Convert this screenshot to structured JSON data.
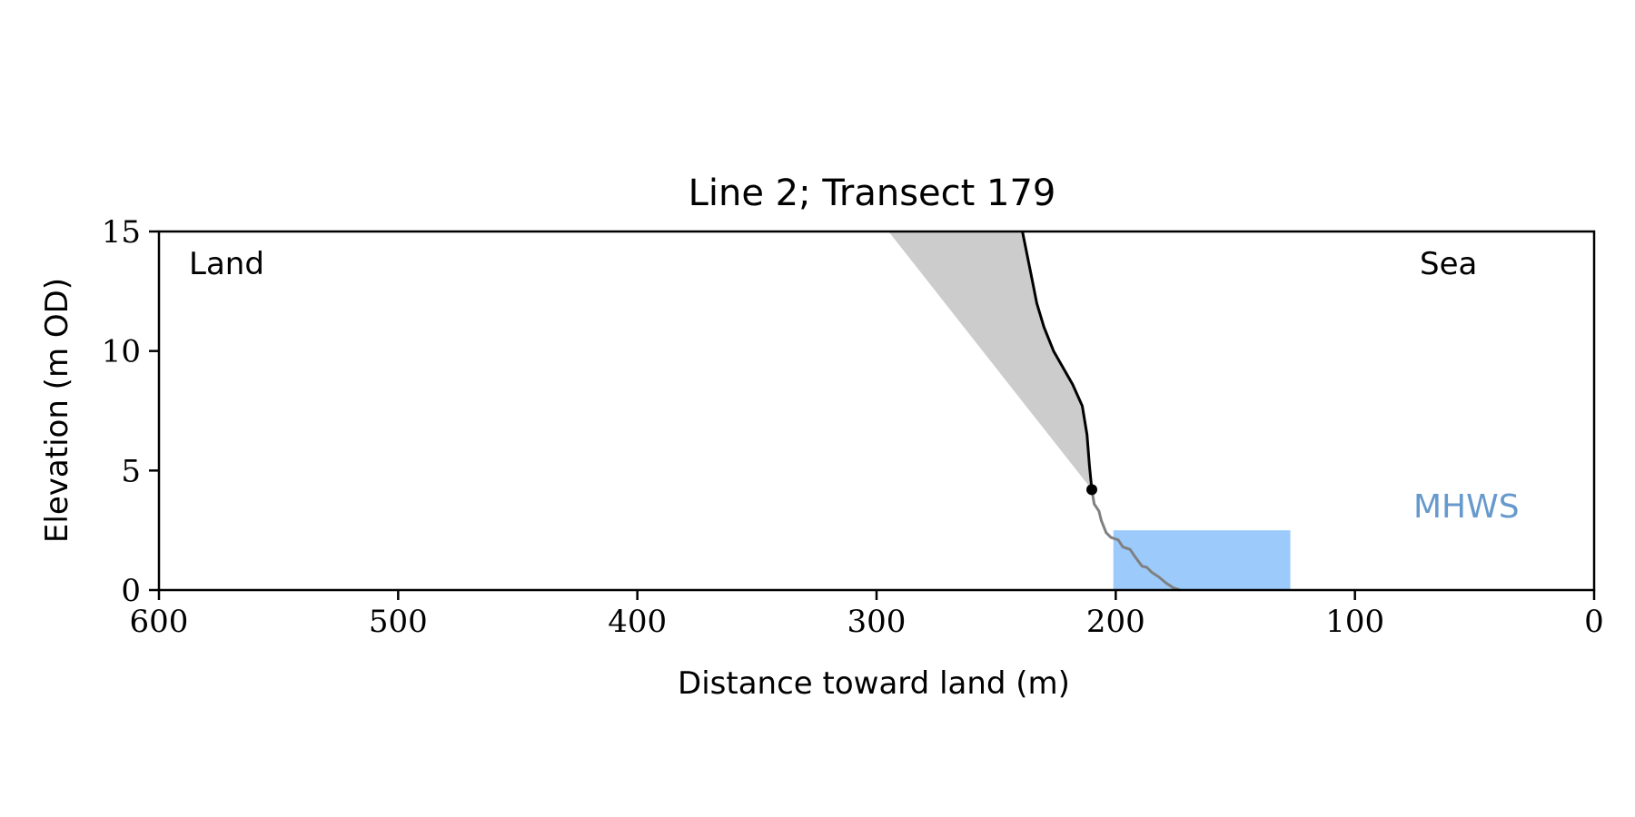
{
  "chart_data": {
    "type": "area",
    "title": "Line 2; Transect 179",
    "xlabel": "Distance toward land (m)",
    "ylabel": "Elevation (m OD)",
    "xlim": [
      600,
      0
    ],
    "ylim": [
      0,
      15
    ],
    "x_reversed": true,
    "x_ticks": [
      600,
      500,
      400,
      300,
      200,
      100,
      0
    ],
    "y_ticks": [
      0,
      5,
      10,
      15
    ],
    "grid": false,
    "annotations": {
      "land": "Land",
      "sea": "Sea",
      "mhws": "MHWS"
    },
    "colors": {
      "cliff_line": "#000000",
      "beach_line": "#808080",
      "erosion_fill": "#cccccc",
      "mhws_fill": "#9ccbfb",
      "mhws_text": "#6699cc"
    },
    "series": [
      {
        "role": "cliff-profile",
        "x": [
          239,
          237,
          235,
          233,
          230,
          226,
          222,
          218,
          214,
          212,
          211,
          210
        ],
        "y": [
          15,
          14,
          13,
          12,
          11,
          10,
          9.3,
          8.6,
          7.7,
          6.5,
          5.2,
          4.2
        ]
      },
      {
        "role": "beach-profile",
        "x": [
          210,
          209,
          207,
          206,
          204,
          202,
          199,
          197,
          194,
          192,
          189,
          187,
          185,
          182,
          179,
          176,
          173
        ],
        "y": [
          4.2,
          3.6,
          3.3,
          2.9,
          2.4,
          2.2,
          2.1,
          1.8,
          1.7,
          1.4,
          1.0,
          0.95,
          0.75,
          0.55,
          0.3,
          0.1,
          0.0
        ]
      },
      {
        "role": "erosion-wedge",
        "x": [
          295,
          239,
          237,
          235,
          233,
          230,
          226,
          222,
          218,
          214,
          212,
          211,
          210
        ],
        "y": [
          15,
          15,
          14,
          13,
          12,
          11,
          10,
          9.3,
          8.6,
          7.7,
          6.5,
          5.2,
          4.2
        ]
      },
      {
        "role": "cliff-toe",
        "x": [
          210
        ],
        "y": [
          4.2
        ]
      }
    ],
    "mhws_band": {
      "x_from": 201,
      "x_to": 127,
      "y_from": 0,
      "y_to": 2.5
    }
  }
}
